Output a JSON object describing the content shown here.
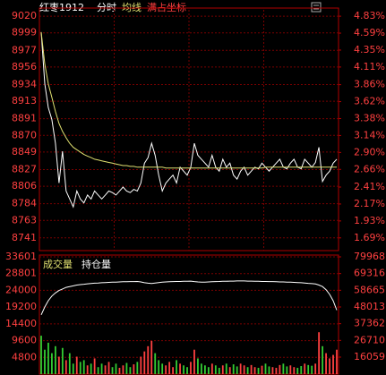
{
  "header": {
    "title": "红枣1912",
    "mode": "分时",
    "avg": "均线",
    "coord": "满占坐标"
  },
  "chart_data": [
    {
      "type": "line",
      "ylim": [
        8725,
        9028
      ],
      "yticks": [
        9020,
        8999,
        8977,
        8956,
        8934,
        8913,
        8891,
        8870,
        8849,
        8827,
        8806,
        8784,
        8763,
        8741
      ],
      "y2lim": [
        1.51,
        4.92
      ],
      "y2ticks": [
        {
          "value": 4.83,
          "label": "4.83%"
        },
        {
          "value": 4.59,
          "label": "4.59%"
        },
        {
          "value": 4.35,
          "label": "4.35%"
        },
        {
          "value": 4.11,
          "label": "4.11%"
        },
        {
          "value": 3.86,
          "label": "3.86%"
        },
        {
          "value": 3.62,
          "label": "3.62%"
        },
        {
          "value": 3.38,
          "label": "3.38%"
        },
        {
          "value": 3.14,
          "label": "3.14%"
        },
        {
          "value": 2.9,
          "label": "2.90%"
        },
        {
          "value": 2.66,
          "label": "2.66%"
        },
        {
          "value": 2.41,
          "label": "2.41%"
        },
        {
          "value": 2.17,
          "label": "2.17%"
        },
        {
          "value": 1.93,
          "label": "1.93%"
        },
        {
          "value": 1.69,
          "label": "1.69%"
        }
      ],
      "grid": true,
      "series": [
        {
          "color": "#ffffff",
          "values": [
            9000,
            8935,
            8905,
            8890,
            8860,
            8810,
            8850,
            8800,
            8790,
            8780,
            8800,
            8790,
            8785,
            8795,
            8790,
            8800,
            8795,
            8790,
            8795,
            8800,
            8798,
            8795,
            8800,
            8805,
            8800,
            8798,
            8802,
            8800,
            8810,
            8835,
            8842,
            8860,
            8845,
            8820,
            8800,
            8810,
            8815,
            8820,
            8810,
            8830,
            8825,
            8820,
            8830,
            8860,
            8845,
            8840,
            8835,
            8830,
            8845,
            8830,
            8825,
            8840,
            8830,
            8835,
            8820,
            8815,
            8825,
            8830,
            8820,
            8825,
            8830,
            8828,
            8835,
            8830,
            8825,
            8830,
            8835,
            8840,
            8830,
            8828,
            8835,
            8840,
            8830,
            8828,
            8840,
            8835,
            8830,
            8836,
            8855,
            8812,
            8820,
            8825,
            8835,
            8840
          ]
        },
        {
          "color": "#e0e070",
          "values": [
            9000,
            8960,
            8935,
            8918,
            8900,
            8885,
            8875,
            8867,
            8860,
            8855,
            8852,
            8849,
            8846,
            8844,
            8842,
            8840,
            8839,
            8838,
            8837,
            8836,
            8835,
            8834,
            8833,
            8832,
            8832,
            8831,
            8831,
            8830,
            8830,
            8830,
            8830,
            8830,
            8830,
            8830,
            8830,
            8829,
            8829,
            8829,
            8829,
            8829,
            8829,
            8829,
            8829,
            8829,
            8829,
            8829,
            8829,
            8829,
            8829,
            8829,
            8829,
            8829,
            8829,
            8829,
            8829,
            8829,
            8829,
            8829,
            8829,
            8829,
            8829,
            8829,
            8829,
            8830,
            8830,
            8830,
            8830,
            8830,
            8830,
            8830,
            8830,
            8830,
            8830,
            8830,
            8830,
            8830,
            8830,
            8830,
            8830,
            8830,
            8830,
            8830,
            8830,
            8830
          ]
        }
      ]
    },
    {
      "type": "bar",
      "ylim": [
        0,
        33601
      ],
      "yticks": [
        33601,
        28801,
        24000,
        19200,
        14400,
        9600,
        4800
      ],
      "y2lim": [
        5217,
        79968
      ],
      "y2ticks": [
        79968,
        69316,
        58665,
        48013,
        37362,
        26710,
        16059
      ],
      "grid": true,
      "series": [
        {
          "name": "成交量",
          "color": "#e0e070",
          "values": [
            11000,
            7000,
            9000,
            6000,
            8000,
            5000,
            7500,
            4000,
            6000,
            3000,
            5000,
            3500,
            4000,
            2500,
            3000,
            4500,
            2000,
            3000,
            2500,
            3500,
            2000,
            3000,
            1800,
            2500,
            3200,
            2000,
            2800,
            3500,
            5000,
            6500,
            8000,
            9500,
            6000,
            4000,
            3000,
            2500,
            3500,
            2000,
            4000,
            3000,
            2500,
            2000,
            3500,
            7000,
            4500,
            3000,
            2500,
            2000,
            3000,
            2500,
            1800,
            2500,
            3000,
            2000,
            2800,
            2200,
            3000,
            2500,
            2000,
            2600,
            2000,
            1800,
            2400,
            3000,
            2200,
            2000,
            1800,
            2600,
            3000,
            2200,
            2500,
            2000,
            1800,
            2300,
            3000,
            2600,
            2400,
            3000,
            12000,
            8000,
            6000,
            4500,
            5500,
            7000
          ],
          "colors": [
            "#33cc33",
            "#33cc33",
            "#33cc33",
            "#33cc33",
            "#33cc33",
            "#ff4040",
            "#33cc33",
            "#ff4040",
            "#33cc33",
            "#33cc33",
            "#ff4040",
            "#33cc33",
            "#33cc33",
            "#ff4040",
            "#33cc33",
            "#ff4040",
            "#33cc33",
            "#33cc33",
            "#ff4040",
            "#ff4040",
            "#33cc33",
            "#33cc33",
            "#ff4040",
            "#ff4040",
            "#33cc33",
            "#33cc33",
            "#ff4040",
            "#33cc33",
            "#ff4040",
            "#ff4040",
            "#ff4040",
            "#ff4040",
            "#33cc33",
            "#33cc33",
            "#33cc33",
            "#ff4040",
            "#ff4040",
            "#ff4040",
            "#33cc33",
            "#ff4040",
            "#33cc33",
            "#33cc33",
            "#ff4040",
            "#ff4040",
            "#33cc33",
            "#33cc33",
            "#33cc33",
            "#33cc33",
            "#ff4040",
            "#33cc33",
            "#33cc33",
            "#ff4040",
            "#33cc33",
            "#ff4040",
            "#33cc33",
            "#33cc33",
            "#ff4040",
            "#ff4040",
            "#33cc33",
            "#ff4040",
            "#ff4040",
            "#33cc33",
            "#ff4040",
            "#33cc33",
            "#33cc33",
            "#ff4040",
            "#ff4040",
            "#ff4040",
            "#33cc33",
            "#33cc33",
            "#ff4040",
            "#ff4040",
            "#33cc33",
            "#33cc33",
            "#ff4040",
            "#33cc33",
            "#33cc33",
            "#ff4040",
            "#ff4040",
            "#33cc33",
            "#ff4040",
            "#ff4040",
            "#ff4040",
            "#ff4040"
          ]
        },
        {
          "name": "持仓量",
          "color": "#ffffff",
          "type": "line",
          "axis": "y2",
          "values": [
            43000,
            48000,
            52000,
            55000,
            57000,
            58500,
            59500,
            60500,
            61000,
            61500,
            62000,
            62300,
            62500,
            62800,
            63000,
            63200,
            63300,
            63500,
            63600,
            63700,
            63800,
            63900,
            64000,
            64100,
            64100,
            64200,
            64200,
            64300,
            64000,
            63500,
            63200,
            63000,
            63300,
            63600,
            63800,
            64000,
            64100,
            64200,
            64300,
            64300,
            64400,
            64400,
            64500,
            64200,
            64000,
            63800,
            63900,
            64000,
            64100,
            64200,
            64300,
            64400,
            64400,
            64500,
            64500,
            64600,
            64600,
            64600,
            64500,
            64500,
            64400,
            64400,
            64300,
            64300,
            64200,
            64200,
            64100,
            64000,
            64000,
            63900,
            63800,
            63700,
            63600,
            63500,
            63300,
            63100,
            62900,
            62700,
            62000,
            61000,
            59000,
            56000,
            52000,
            46000
          ]
        }
      ]
    }
  ]
}
